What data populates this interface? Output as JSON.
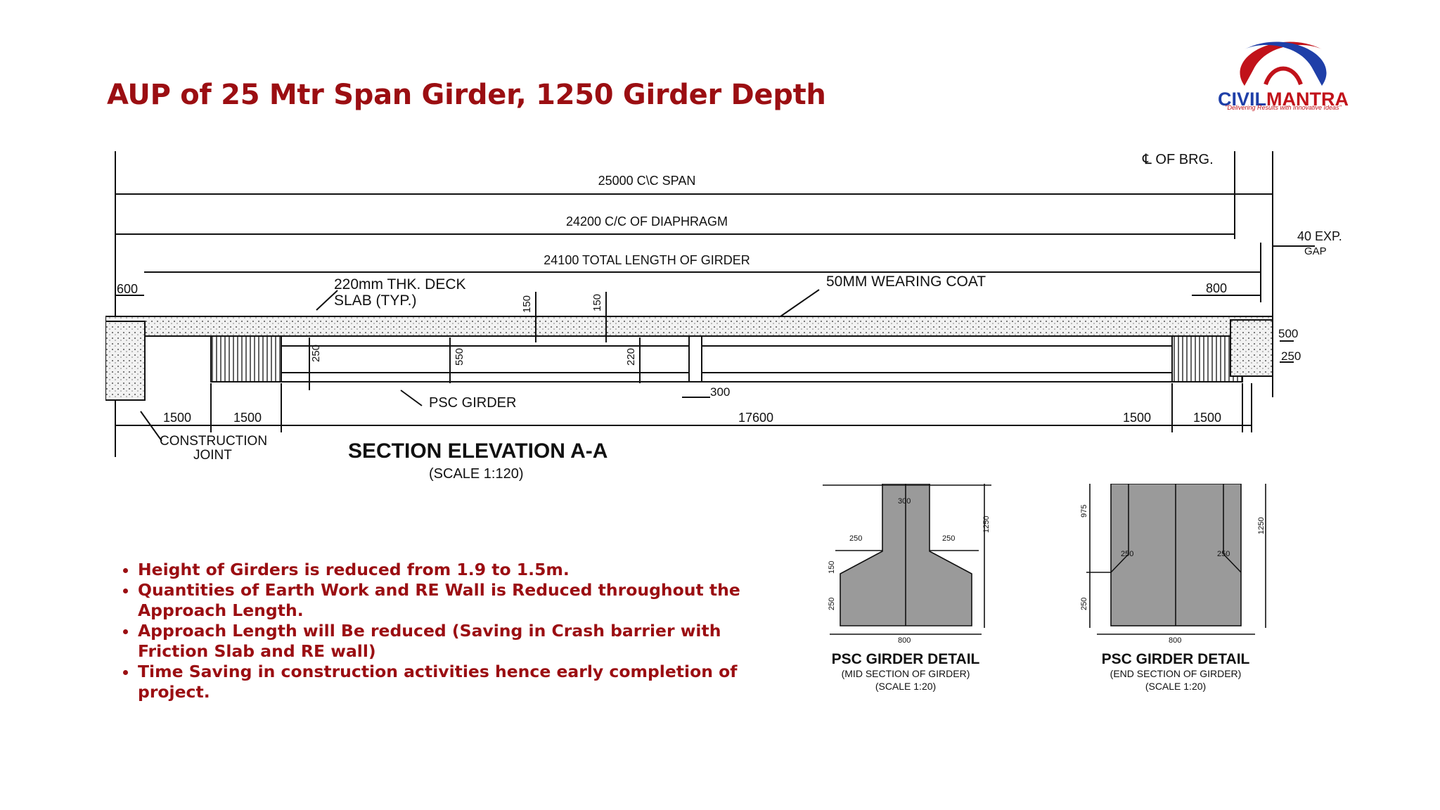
{
  "title": "AUP of 25 Mtr Span Girder, 1250 Girder Depth",
  "logo": {
    "name_part1": "CIVIL",
    "name_part2": "MANTRA",
    "tagline": "\"Delivering Results with Innovative Ideas\""
  },
  "elevation": {
    "cl_brg": "℄ OF BRG.",
    "dims": {
      "span": "25000 C\\C SPAN",
      "diaphragm": "24200 C/C OF DIAPHRAGM",
      "girder_length": "24100 TOTAL LENGTH OF GIRDER",
      "exp_gap_1": "40 EXP.",
      "exp_gap_2": "GAP",
      "left_600": "600",
      "right_800": "800",
      "v150a": "150",
      "v150b": "150",
      "v250": "250",
      "v550": "550",
      "v220": "220",
      "r500": "500",
      "r250": "250",
      "w300": "300",
      "b1500a": "1500",
      "b1500b": "1500",
      "b17600": "17600",
      "b1500c": "1500",
      "b1500d": "1500"
    },
    "labels": {
      "deck_1": "220mm THK. DECK",
      "deck_2": "SLAB (TYP.)",
      "wearing": "50MM WEARING COAT",
      "psc": "PSC GIRDER",
      "joint_1": "CONSTRUCTION",
      "joint_2": "JOINT"
    },
    "heading": "SECTION ELEVATION A-A",
    "scale": "(SCALE 1:120)"
  },
  "details": [
    {
      "dims": {
        "top": "300",
        "left_flange": "250",
        "right_flange": "250",
        "d150": "150",
        "d250": "250",
        "h1250": "1250",
        "base": "800"
      },
      "heading": "PSC GIRDER DETAIL",
      "sub": "(MID SECTION OF GIRDER)",
      "scale": "(SCALE 1:20)"
    },
    {
      "dims": {
        "d975": "975",
        "left_flange": "250",
        "right_flange": "250",
        "d250": "250",
        "h1250": "1250",
        "base": "800"
      },
      "heading": "PSC GIRDER DETAIL",
      "sub": "(END SECTION OF GIRDER)",
      "scale": "(SCALE 1:20)"
    }
  ],
  "bullets": [
    "Height of Girders is reduced from 1.9 to 1.5m.",
    "Quantities of Earth Work and RE Wall is Reduced throughout the Approach Length.",
    "Approach Length will Be reduced (Saving in Crash barrier with Friction Slab and RE wall)",
    "Time Saving in construction activities hence early completion of project."
  ],
  "colors": {
    "title": "#9b0e12",
    "bullets": "#9b0e12",
    "logo_blue": "#1f3fa8",
    "logo_red": "#c1121a",
    "concrete": "#9a9a9a"
  }
}
